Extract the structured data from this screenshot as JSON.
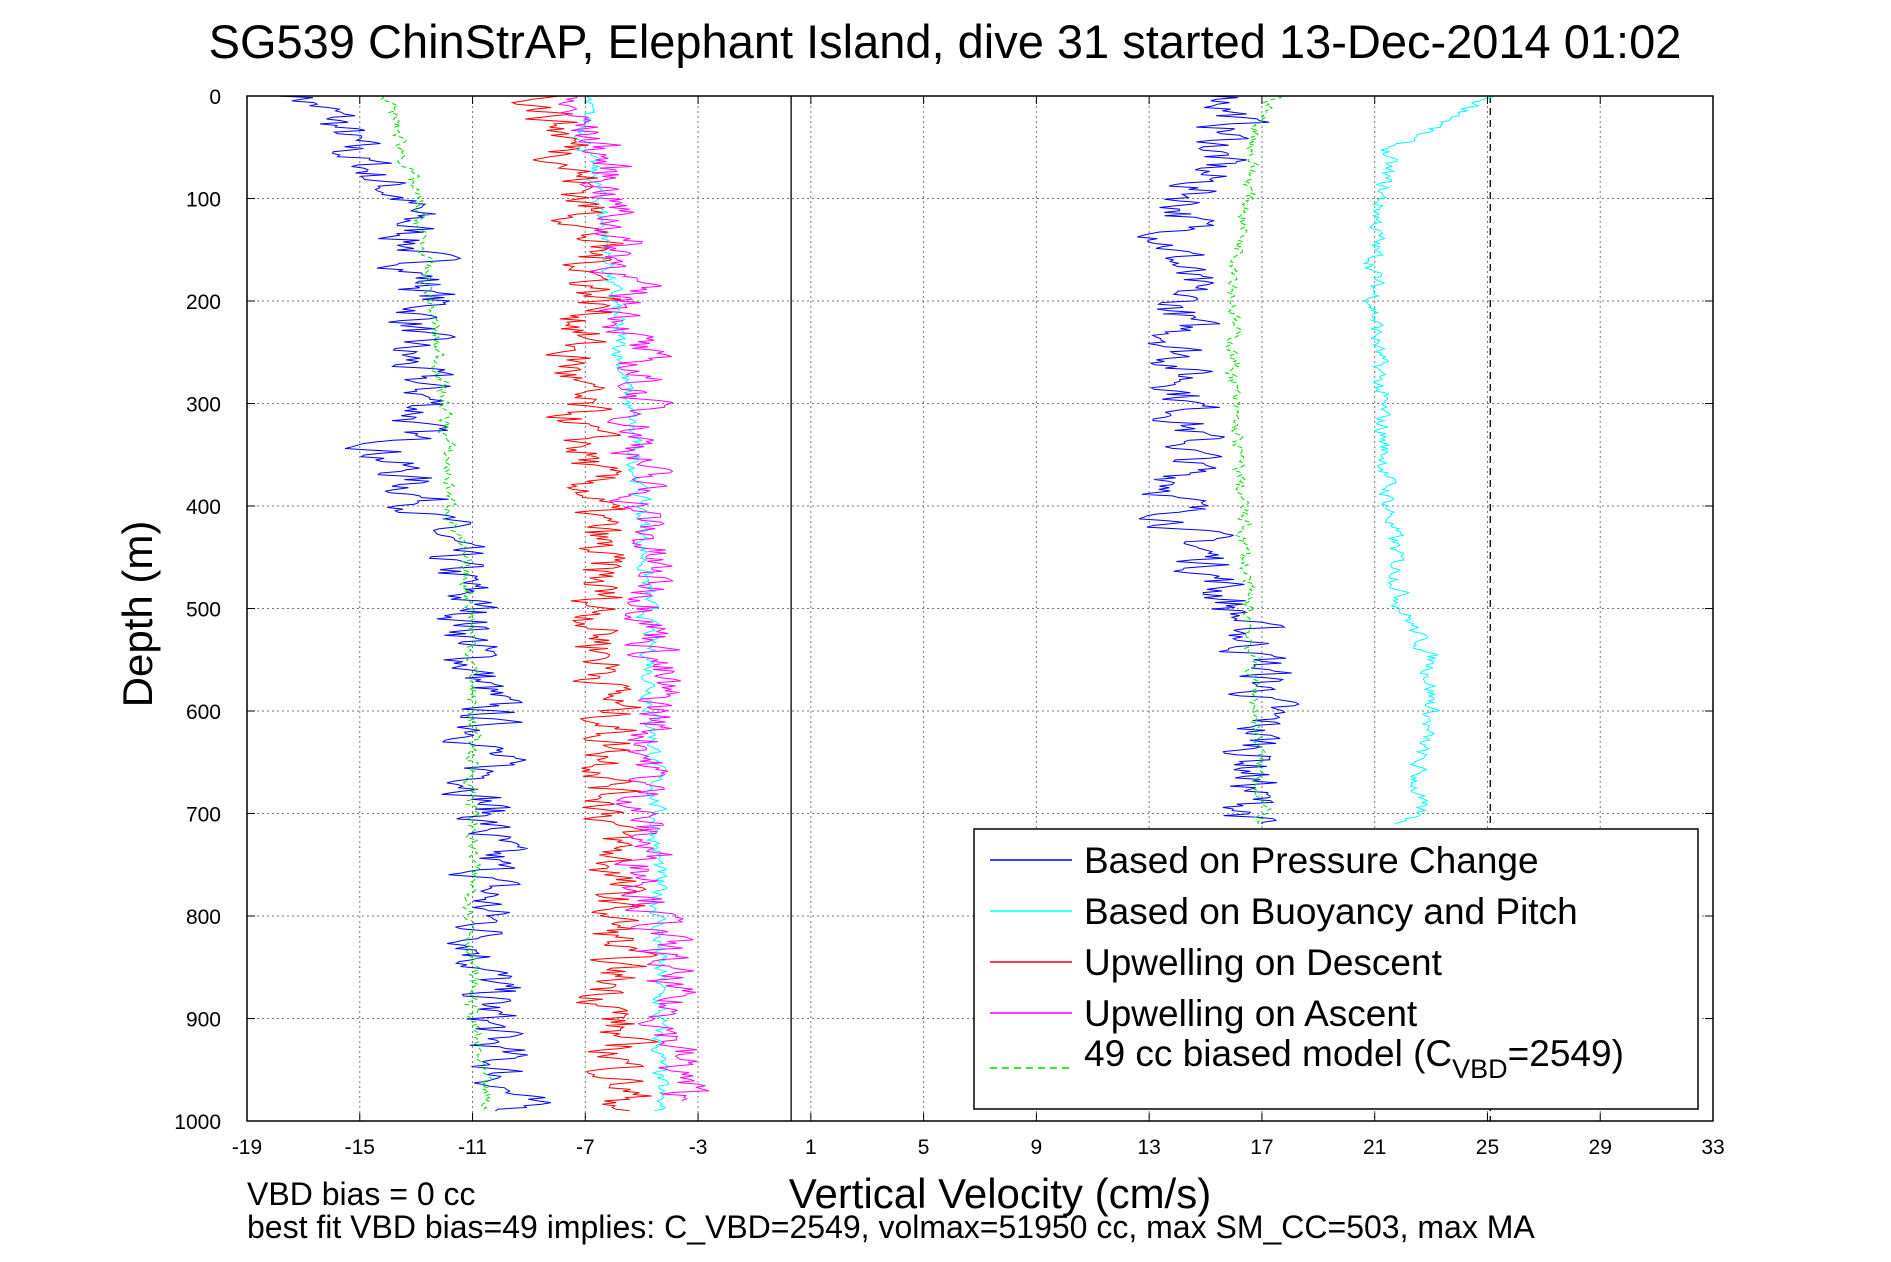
{
  "chart_data": {
    "type": "line",
    "title": "SG539 ChinStrAP, Elephant Island, dive 31 started 13-Dec-2014 01:02",
    "xlabel": "Vertical Velocity (cm/s)",
    "ylabel": "Depth (m)",
    "xlim": [
      -19,
      33
    ],
    "ylim": [
      1000,
      0
    ],
    "y_reversed": true,
    "grid": true,
    "xticks": [
      "-19",
      "-15",
      "-11",
      "-7",
      "-3",
      "1",
      "5",
      "9",
      "13",
      "17",
      "21",
      "25",
      "29",
      "33"
    ],
    "yticks": [
      "0",
      "100",
      "200",
      "300",
      "400",
      "500",
      "600",
      "700",
      "800",
      "900",
      "1000"
    ],
    "reference_lines": [
      {
        "x": 0.3,
        "style": "solid",
        "color": "#000000"
      },
      {
        "x": 25.1,
        "style": "dashed",
        "color": "#000000"
      }
    ],
    "legend_position": "lower-right",
    "legend": {
      "pressure": "Based on Pressure Change",
      "buoyancy": "Based on Buoyancy and Pitch",
      "descent": "Upwelling on Descent",
      "ascent": "Upwelling on Ascent",
      "model_prefix": "49 cc biased model (C",
      "model_sub": "VBD",
      "model_suffix": "=2549)"
    },
    "notes": {
      "line1": "VBD bias = 0 cc",
      "line2": "best fit VBD bias=49 implies: C_VBD=2549, volmax=51950 cc, max SM_CC=503, max MA"
    },
    "series": [
      {
        "name": "Based on Pressure Change",
        "color": "#0000ff",
        "style": "solid",
        "noise": 0.9,
        "branches": [
          {
            "depth": [
              0,
              20,
              50,
              100,
              150,
              200,
              250,
              300,
              350,
              400,
              450,
              500,
              550,
              600,
              650,
              700,
              750,
              800,
              850,
              900,
              950,
              990
            ],
            "velocity": [
              -17,
              -16,
              -15.5,
              -13.5,
              -13,
              -12.5,
              -13.5,
              -12.5,
              -14,
              -12.5,
              -12,
              -11,
              -11,
              -10.5,
              -10.5,
              -10.5,
              -10.5,
              -10.5,
              -10.5,
              -10.5,
              -10,
              -9.5
            ]
          },
          {
            "depth": [
              0,
              20,
              50,
              100,
              150,
              200,
              250,
              300,
              350,
              400,
              450,
              500,
              550,
              600,
              650,
              700,
              710
            ],
            "velocity": [
              16,
              16,
              15.5,
              14.5,
              14,
              14,
              14.2,
              14.5,
              14.5,
              14,
              15,
              16,
              17,
              17,
              16.8,
              16.5,
              16.5
            ]
          }
        ]
      },
      {
        "name": "Based on Buoyancy and Pitch",
        "color": "#00ffff",
        "style": "solid",
        "noise": 0.25,
        "branches": [
          {
            "depth": [
              0,
              50,
              100,
              200,
              300,
              400,
              500,
              600,
              700,
              800,
              900,
              990
            ],
            "velocity": [
              -7,
              -7,
              -6.5,
              -6,
              -5.5,
              -5,
              -4.8,
              -4.6,
              -4.5,
              -4.4,
              -4.4,
              -4.4
            ]
          },
          {
            "depth": [
              0,
              20,
              50,
              100,
              150,
              200,
              300,
              400,
              500,
              550,
              600,
              650,
              700,
              710
            ],
            "velocity": [
              25,
              24,
              21.5,
              21.2,
              21,
              21,
              21.2,
              21.5,
              22,
              23,
              23,
              22.5,
              22.5,
              22
            ]
          }
        ]
      },
      {
        "name": "Upwelling on Descent",
        "color": "#ff0000",
        "style": "solid",
        "noise": 0.85,
        "branches": [
          {
            "depth": [
              0,
              50,
              100,
              200,
              250,
              300,
              350,
              400,
              500,
              600,
              700,
              800,
              900,
              990
            ],
            "velocity": [
              -8.5,
              -7.5,
              -7,
              -6.5,
              -7.5,
              -7.5,
              -7,
              -6.8,
              -6.5,
              -6,
              -6,
              -6,
              -6,
              -5.5
            ]
          }
        ]
      },
      {
        "name": "Upwelling on Ascent",
        "color": "#ff00ff",
        "style": "solid",
        "noise": 0.75,
        "branches": [
          {
            "depth": [
              0,
              50,
              100,
              200,
              300,
              400,
              500,
              600,
              700,
              800,
              900,
              980
            ],
            "velocity": [
              -8,
              -6.5,
              -6,
              -5.5,
              -5,
              -5,
              -4.5,
              -4.5,
              -5,
              -4.5,
              -4,
              -3.5
            ]
          }
        ]
      },
      {
        "name": "49 cc biased model (C VBD =2549)",
        "color": "#00dd00",
        "style": "dashed",
        "noise": 0.2,
        "branches": [
          {
            "depth": [
              0,
              50,
              100,
              200,
              300,
              400,
              500,
              600,
              700,
              800,
              900,
              990
            ],
            "velocity": [
              -14,
              -13.5,
              -13,
              -12.5,
              -12,
              -11.8,
              -11,
              -11,
              -11,
              -11,
              -11,
              -10.5
            ]
          },
          {
            "depth": [
              0,
              30,
              100,
              200,
              300,
              400,
              500,
              600,
              700,
              710
            ],
            "velocity": [
              17.5,
              16.8,
              16.5,
              16,
              16,
              16.3,
              16.5,
              16.8,
              17,
              17
            ]
          }
        ]
      }
    ]
  }
}
